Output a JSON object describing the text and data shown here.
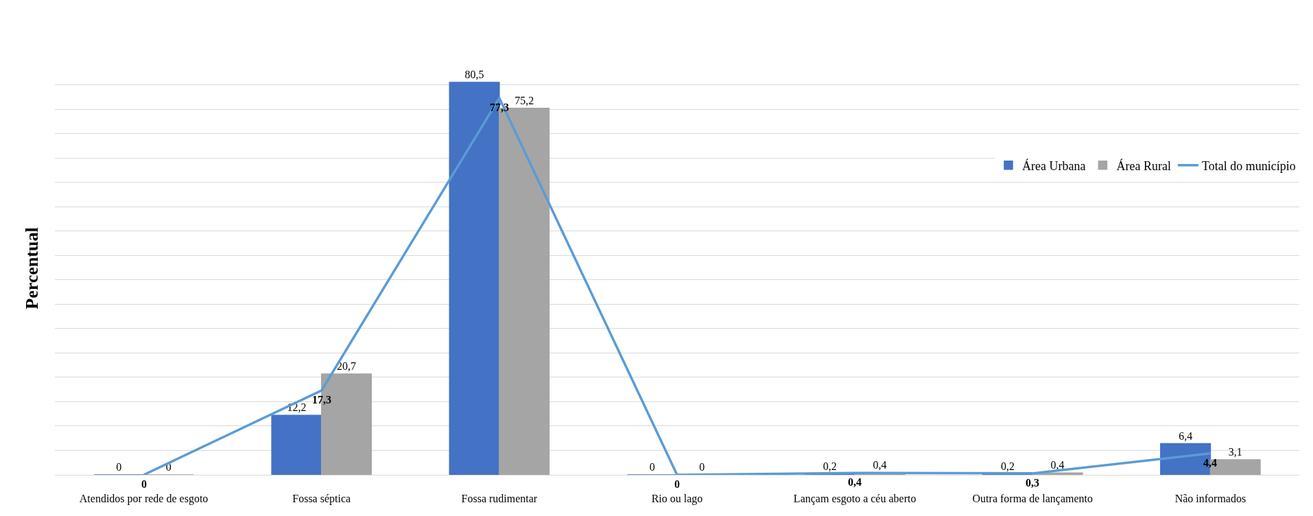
{
  "chart_data": {
    "type": "bar",
    "ylabel": "Percentual",
    "categories": [
      "Atendidos por rede de esgoto",
      "Fossa séptica",
      "Fossa rudimentar",
      "Rio ou lago",
      "Lançam esgoto a céu aberto",
      "Outra forma de lançamento",
      "Não informados"
    ],
    "series": [
      {
        "name": "Área Urbana",
        "color": "#4472c4",
        "values": [
          0,
          12.2,
          80.5,
          0,
          0.2,
          0.2,
          6.4
        ],
        "value_labels": [
          "0",
          "12,2",
          "80,5",
          "0",
          "0,2",
          "0,2",
          "6,4"
        ]
      },
      {
        "name": "Área Rural",
        "color": "#a5a5a5",
        "values": [
          0,
          20.7,
          75.2,
          0,
          0.4,
          0.4,
          3.1
        ],
        "value_labels": [
          "0",
          "20,7",
          "75,2",
          "0",
          "0,4",
          "0,4",
          "3,1"
        ]
      },
      {
        "name": "Total do município",
        "type": "line",
        "color": "#5b9bd5",
        "values": [
          0,
          17.3,
          77.3,
          0,
          0.4,
          0.3,
          4.4
        ],
        "value_labels": [
          "0",
          "17,3",
          "77,3",
          "0",
          "0,4",
          "0,3",
          "4,4"
        ]
      }
    ],
    "tick_labels": "x",
    "grid": "y",
    "legend": "top right"
  }
}
